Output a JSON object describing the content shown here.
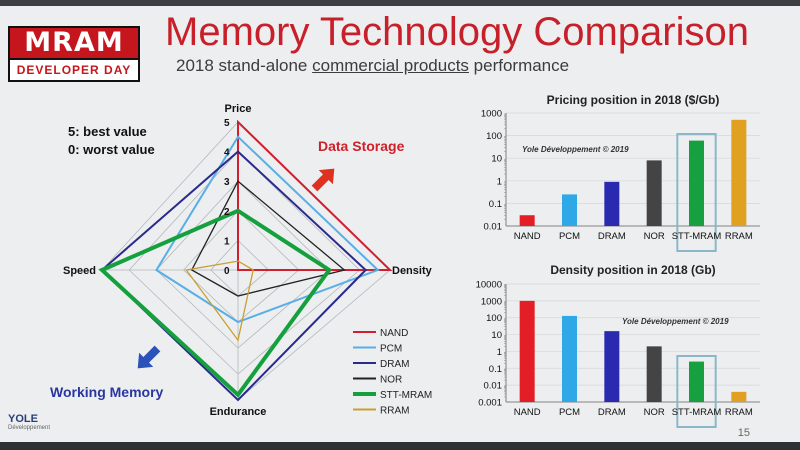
{
  "slide": {
    "title": "Memory Technology Comparison",
    "subtitle_before": "2018 stand-alone ",
    "subtitle_underlined": "commercial products",
    "subtitle_after": " performance",
    "page_number": "15"
  },
  "logo": {
    "top": "MRAM",
    "bottom": "DEVELOPER DAY"
  },
  "footer_logo": {
    "name": "YOLE",
    "tag": "Développement"
  },
  "value_note": {
    "best": "5: best value",
    "worst": "0: worst value"
  },
  "annotations": {
    "data_storage": "Data Storage",
    "working_memory": "Working Memory"
  },
  "colors": {
    "title_red": "#c8202a",
    "annotation_red": "#d0202a",
    "annotation_blue": "#2a36a0",
    "arrow_red": "#e03020",
    "arrow_blue": "#2a52b8"
  },
  "chart_data": [
    {
      "type": "radar",
      "axes": [
        "Price",
        "Density",
        "Endurance",
        "Speed"
      ],
      "scale_ticks": [
        "0",
        "1",
        "2",
        "3",
        "4",
        "5"
      ],
      "range": [
        0,
        5
      ],
      "series": [
        {
          "name": "NAND",
          "color": "#d02030",
          "values": [
            5,
            5,
            0,
            0
          ],
          "width": 2
        },
        {
          "name": "PCM",
          "color": "#5aaee6",
          "values": [
            4.5,
            4.6,
            2,
            3
          ],
          "width": 2
        },
        {
          "name": "DRAM",
          "color": "#2a2a8c",
          "values": [
            4,
            4.2,
            5,
            5
          ],
          "width": 2
        },
        {
          "name": "NOR",
          "color": "#222222",
          "values": [
            3,
            3.5,
            1,
            1.7
          ],
          "width": 1.3
        },
        {
          "name": "STT-MRAM",
          "color": "#14a03c",
          "values": [
            2,
            3,
            4.8,
            5
          ],
          "width": 4
        },
        {
          "name": "RRAM",
          "color": "#c8a032",
          "values": [
            0.3,
            0.5,
            2.7,
            1.9
          ],
          "width": 1.3
        }
      ]
    },
    {
      "type": "bar",
      "scale": "log",
      "title": "Pricing position in 2018 ($/Gb)",
      "watermark": "Yole Développement © 2019",
      "categories": [
        "NAND",
        "PCM",
        "DRAM",
        "NOR",
        "STT-MRAM",
        "RRAM"
      ],
      "values": [
        0.03,
        0.25,
        0.9,
        8,
        60,
        500
      ],
      "colors": [
        "#e41e26",
        "#2ea8e6",
        "#2a2ab0",
        "#444444",
        "#16a040",
        "#e0a020"
      ],
      "y_ticks": [
        "0.01",
        "0.1",
        "1",
        "10",
        "100",
        "1000"
      ],
      "ylim": [
        0.01,
        1000
      ],
      "highlight": "STT-MRAM"
    },
    {
      "type": "bar",
      "scale": "log",
      "title": "Density position in 2018 (Gb)",
      "watermark": "Yole Développement © 2019",
      "categories": [
        "NAND",
        "PCM",
        "DRAM",
        "NOR",
        "STT-MRAM",
        "RRAM"
      ],
      "values": [
        1000,
        128,
        16,
        2,
        0.25,
        0.004
      ],
      "colors": [
        "#e41e26",
        "#2ea8e6",
        "#2a2ab0",
        "#444444",
        "#16a040",
        "#e0a020"
      ],
      "y_ticks": [
        "0.001",
        "0.01",
        "0.1",
        "1",
        "10",
        "100",
        "1000",
        "10000"
      ],
      "ylim": [
        0.001,
        10000
      ],
      "highlight": "STT-MRAM"
    }
  ]
}
